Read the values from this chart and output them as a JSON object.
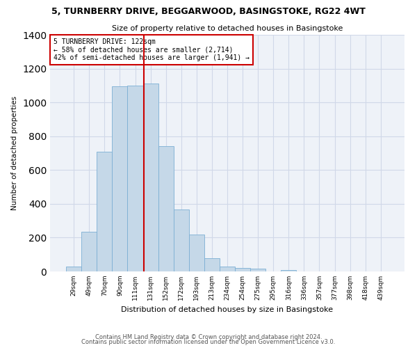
{
  "title": "5, TURNBERRY DRIVE, BEGGARWOOD, BASINGSTOKE, RG22 4WT",
  "subtitle": "Size of property relative to detached houses in Basingstoke",
  "xlabel": "Distribution of detached houses by size in Basingstoke",
  "ylabel": "Number of detached properties",
  "bar_labels": [
    "29sqm",
    "49sqm",
    "70sqm",
    "90sqm",
    "111sqm",
    "131sqm",
    "152sqm",
    "172sqm",
    "193sqm",
    "213sqm",
    "234sqm",
    "254sqm",
    "275sqm",
    "295sqm",
    "316sqm",
    "336sqm",
    "357sqm",
    "377sqm",
    "398sqm",
    "418sqm",
    "439sqm"
  ],
  "bar_values": [
    30,
    235,
    710,
    1095,
    1100,
    1110,
    740,
    365,
    220,
    80,
    30,
    20,
    15,
    0,
    10,
    0,
    0,
    0,
    0,
    0,
    0
  ],
  "bar_color": "#c5d8e8",
  "bar_edge_color": "#7bafd4",
  "vline_color": "#cc0000",
  "annotation_text": "5 TURNBERRY DRIVE: 122sqm\n← 58% of detached houses are smaller (2,714)\n42% of semi-detached houses are larger (1,941) →",
  "annotation_box_color": "#cc0000",
  "ylim": [
    0,
    1400
  ],
  "yticks": [
    0,
    200,
    400,
    600,
    800,
    1000,
    1200,
    1400
  ],
  "footer1": "Contains HM Land Registry data © Crown copyright and database right 2024.",
  "footer2": "Contains public sector information licensed under the Open Government Licence v3.0.",
  "grid_color": "#d0d8e8",
  "bg_color": "#eef2f8"
}
